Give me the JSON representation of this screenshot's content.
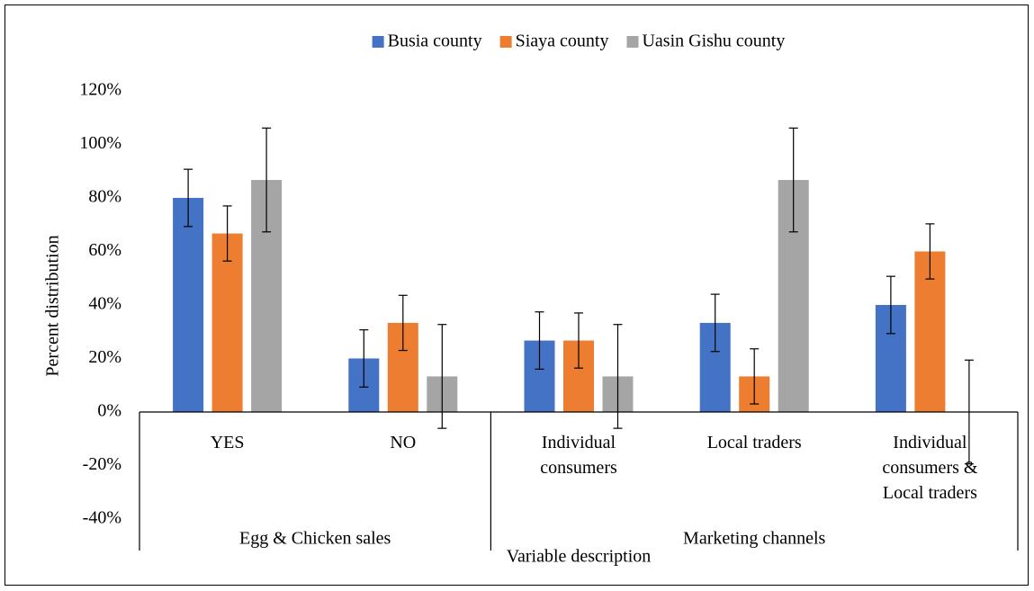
{
  "chart_data": {
    "type": "bar",
    "x_label": "Variable description",
    "y_label": "Percent distribution",
    "categories": [
      "YES",
      "NO",
      "Individual consumers",
      "Local traders",
      "Individual consumers & Local traders"
    ],
    "groups": [
      {
        "name": "Egg & Chicken sales",
        "size": 2
      },
      {
        "name": "Marketing channels",
        "size": 3
      }
    ],
    "series": [
      {
        "name": "Busia county",
        "color": "#4472c4",
        "values": [
          80,
          20,
          26.7,
          33.3,
          40
        ],
        "errors": [
          10.7,
          10.7,
          10.7,
          10.7,
          10.7
        ]
      },
      {
        "name": "Siaya county",
        "color": "#ed7d31",
        "values": [
          66.7,
          33.3,
          26.7,
          13.3,
          60
        ],
        "errors": [
          10.3,
          10.3,
          10.3,
          10.3,
          10.3
        ]
      },
      {
        "name": "Uasin Gishu county",
        "color": "#a5a5a5",
        "values": [
          86.7,
          13.3,
          13.3,
          86.7,
          0
        ],
        "errors": [
          19.4,
          19.4,
          19.4,
          19.4,
          19.4
        ]
      }
    ],
    "ylim": [
      -40,
      120
    ],
    "yticks": [
      {
        "value": -40,
        "label": "-40%"
      },
      {
        "value": -20,
        "label": "-20%"
      },
      {
        "value": 0,
        "label": "0%"
      },
      {
        "value": 20,
        "label": "20%"
      },
      {
        "value": 40,
        "label": "40%"
      },
      {
        "value": 60,
        "label": "60%"
      },
      {
        "value": 80,
        "label": "80%"
      },
      {
        "value": 100,
        "label": "100%"
      },
      {
        "value": 120,
        "label": "120%"
      }
    ],
    "legend": "top",
    "grid": false
  }
}
